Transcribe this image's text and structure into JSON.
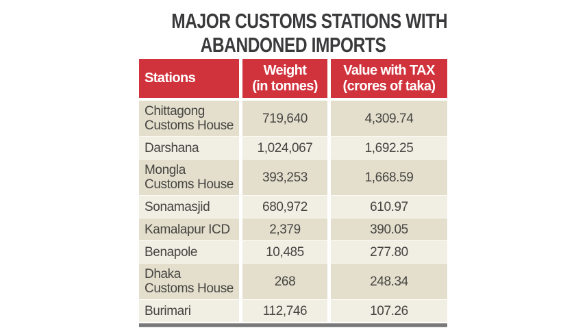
{
  "title": {
    "line1": "MAJOR CUSTOMS STATIONS WITH",
    "line2": "ABANDONED IMPORTS"
  },
  "table": {
    "headers": {
      "stations": "Stations",
      "weight_line1": "Weight",
      "weight_line2": "(in tonnes)",
      "value_line1": "Value with TAX",
      "value_line2": "(crores of taka)"
    },
    "rows": [
      {
        "station": "Chittagong\nCustoms House",
        "weight": "719,640",
        "value": "4,309.74"
      },
      {
        "station": "Darshana",
        "weight": "1,024,067",
        "value": "1,692.25"
      },
      {
        "station": "Mongla\nCustoms House",
        "weight": "393,253",
        "value": "1,668.59"
      },
      {
        "station": "Sonamasjid",
        "weight": "680,972",
        "value": "610.97"
      },
      {
        "station": "Kamalapur ICD",
        "weight": "2,379",
        "value": "390.05"
      },
      {
        "station": "Benapole",
        "weight": "10,485",
        "value": "277.80"
      },
      {
        "station": "Dhaka\nCustoms House",
        "weight": "268",
        "value": "248.34"
      },
      {
        "station": "Burimari",
        "weight": "112,746",
        "value": "107.26"
      }
    ]
  },
  "colors": {
    "header_red": "#d1333d",
    "row_dark_beige": "#e4dfcd",
    "row_light_cream": "#f1eee3",
    "title_text": "#3a393b",
    "body_text": "#454440",
    "bottom_bar_gray": "#6c6c6c"
  },
  "chart_data": {
    "type": "table",
    "title": "MAJOR CUSTOMS STATIONS WITH ABANDONED IMPORTS",
    "columns": [
      "Stations",
      "Weight (in tonnes)",
      "Value with TAX (crores of taka)"
    ],
    "rows": [
      {
        "station": "Chittagong Customs House",
        "weight_tonnes": 719640,
        "value_crores_taka": 4309.74
      },
      {
        "station": "Darshana",
        "weight_tonnes": 1024067,
        "value_crores_taka": 1692.25
      },
      {
        "station": "Mongla Customs House",
        "weight_tonnes": 393253,
        "value_crores_taka": 1668.59
      },
      {
        "station": "Sonamasjid",
        "weight_tonnes": 680972,
        "value_crores_taka": 610.97
      },
      {
        "station": "Kamalapur ICD",
        "weight_tonnes": 2379,
        "value_crores_taka": 390.05
      },
      {
        "station": "Benapole",
        "weight_tonnes": 10485,
        "value_crores_taka": 277.8
      },
      {
        "station": "Dhaka Customs House",
        "weight_tonnes": 268,
        "value_crores_taka": 248.34
      },
      {
        "station": "Burimari",
        "weight_tonnes": 112746,
        "value_crores_taka": 107.26
      }
    ]
  }
}
